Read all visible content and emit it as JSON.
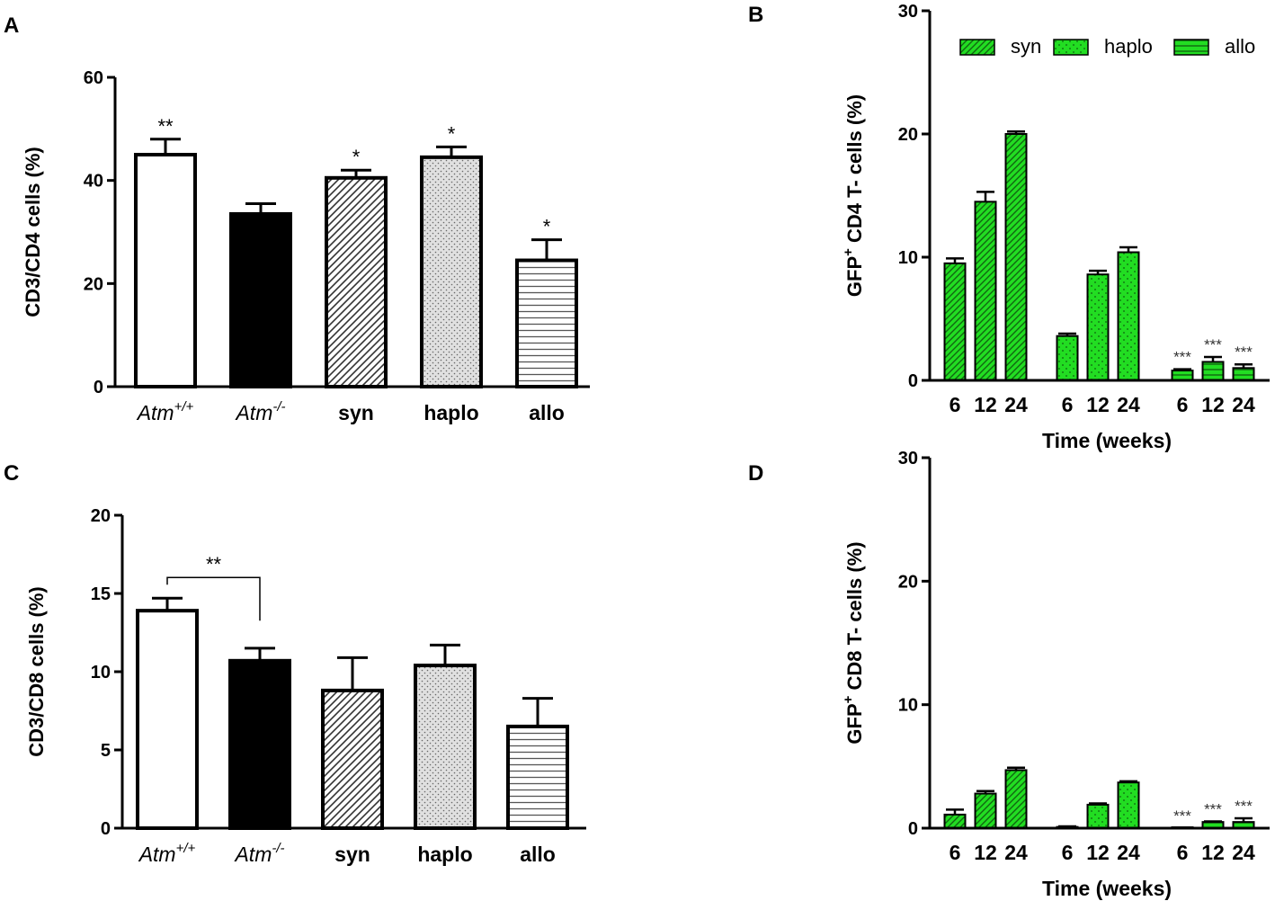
{
  "chart_data": [
    {
      "panel": "A",
      "type": "bar",
      "ylabel": "CD3/CD4 cells (%)",
      "ylim": [
        0,
        60
      ],
      "yticks": [
        0,
        20,
        40,
        60
      ],
      "categories": [
        {
          "base": "Atm",
          "sup": "+/+",
          "italic": true
        },
        {
          "base": "Atm",
          "sup": "-/-",
          "italic": true
        },
        {
          "base": "syn",
          "sup": "",
          "italic": false
        },
        {
          "base": "haplo",
          "sup": "",
          "italic": false
        },
        {
          "base": "allo",
          "sup": "",
          "italic": false
        }
      ],
      "fills": [
        "white",
        "black",
        "diag",
        "dots",
        "hlines"
      ],
      "values": [
        45,
        33.5,
        40.5,
        44.5,
        24.5
      ],
      "errors": [
        3,
        2,
        1.5,
        2,
        4
      ],
      "annotations": [
        "**",
        "",
        "*",
        "*",
        "*"
      ]
    },
    {
      "panel": "B",
      "type": "bar",
      "ylabel_pre": "GFP",
      "ylabel_sup": "+",
      "ylabel_post": " CD4 T- cells (%)",
      "xlabel": "Time (weeks)",
      "ylim": [
        0,
        30
      ],
      "yticks": [
        0,
        10,
        20,
        30
      ],
      "categories": [
        "6",
        "12",
        "24"
      ],
      "bar_color": "#22dd22",
      "series": [
        {
          "name": "syn",
          "values": [
            9.5,
            14.5,
            20
          ],
          "errors": [
            0.4,
            0.8,
            0.2
          ],
          "annotations": [
            "",
            "",
            ""
          ]
        },
        {
          "name": "haplo",
          "values": [
            3.6,
            8.6,
            10.4
          ],
          "errors": [
            0.2,
            0.3,
            0.4
          ],
          "annotations": [
            "",
            "",
            ""
          ]
        },
        {
          "name": "allo",
          "values": [
            0.8,
            1.5,
            1.0
          ],
          "errors": [
            0.1,
            0.4,
            0.3
          ],
          "annotations": [
            "***",
            "***",
            "***"
          ]
        }
      ],
      "legend_position": "top-right"
    },
    {
      "panel": "C",
      "type": "bar",
      "ylabel": "CD3/CD8 cells (%)",
      "ylim": [
        0,
        20
      ],
      "yticks": [
        0,
        5,
        10,
        15,
        20
      ],
      "categories": [
        {
          "base": "Atm",
          "sup": "+/+",
          "italic": true
        },
        {
          "base": "Atm",
          "sup": "-/-",
          "italic": true
        },
        {
          "base": "syn",
          "sup": "",
          "italic": false
        },
        {
          "base": "haplo",
          "sup": "",
          "italic": false
        },
        {
          "base": "allo",
          "sup": "",
          "italic": false
        }
      ],
      "fills": [
        "white",
        "black",
        "diag",
        "dots",
        "hlines"
      ],
      "values": [
        13.9,
        10.7,
        8.8,
        10.4,
        6.5
      ],
      "errors": [
        0.8,
        0.8,
        2.1,
        1.3,
        1.8
      ],
      "annotations": [
        "",
        "",
        "",
        "",
        ""
      ],
      "bracket": {
        "from": 0,
        "to": 1,
        "label": "**"
      }
    },
    {
      "panel": "D",
      "type": "bar",
      "ylabel_pre": "GFP",
      "ylabel_sup": "+",
      "ylabel_post": " CD8 T- cells (%)",
      "xlabel": "Time (weeks)",
      "ylim": [
        0,
        30
      ],
      "yticks": [
        0,
        10,
        20,
        30
      ],
      "categories": [
        "6",
        "12",
        "24"
      ],
      "bar_color": "#22dd22",
      "series": [
        {
          "name": "syn",
          "values": [
            1.1,
            2.8,
            4.7
          ],
          "errors": [
            0.4,
            0.2,
            0.2
          ],
          "annotations": [
            "",
            "",
            ""
          ]
        },
        {
          "name": "haplo",
          "values": [
            0.1,
            1.9,
            3.7
          ],
          "errors": [
            0.05,
            0.1,
            0.1
          ],
          "annotations": [
            "",
            "",
            ""
          ]
        },
        {
          "name": "allo",
          "values": [
            0.0,
            0.5,
            0.5
          ],
          "errors": [
            0.0,
            0.05,
            0.3
          ],
          "annotations": [
            "***",
            "***",
            "***"
          ]
        }
      ]
    }
  ]
}
